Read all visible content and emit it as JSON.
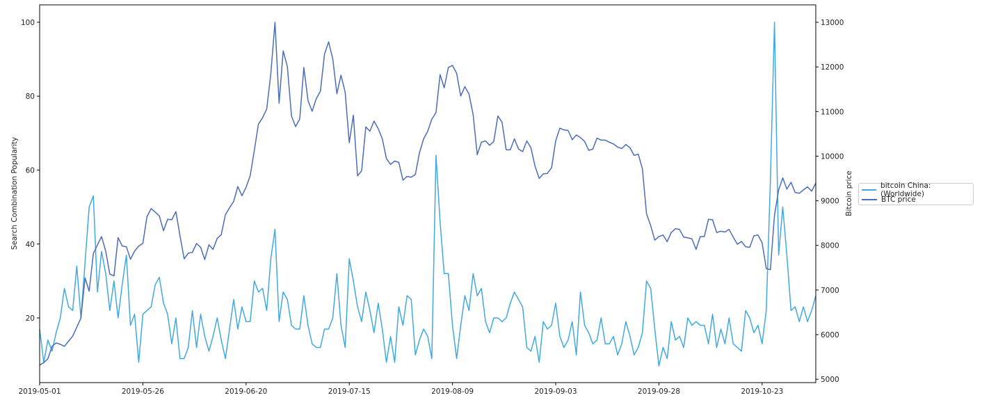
{
  "chart_data": {
    "type": "line",
    "title": "",
    "xlabel": "",
    "ylabel_left": "Search Combination Popularity",
    "ylabel_right": "Bitcoin price",
    "x": {
      "start": "2019-05-01",
      "end": "2019-11-05",
      "frequency": "daily"
    },
    "xlim": [
      "2019-05-01",
      "2019-11-05"
    ],
    "x_ticks": [
      "2019-05-01",
      "2019-05-26",
      "2019-06-20",
      "2019-07-15",
      "2019-08-09",
      "2019-09-03",
      "2019-09-28",
      "2019-10-23"
    ],
    "ylim_left": [
      2.5,
      104.7
    ],
    "y_ticks_left": [
      20,
      40,
      60,
      80,
      100
    ],
    "ylim_right": [
      4925,
      13390
    ],
    "y_ticks_right": [
      5000,
      6000,
      7000,
      8000,
      9000,
      10000,
      11000,
      12000,
      13000
    ],
    "grid": false,
    "legend_placement": "outside-right",
    "series": [
      {
        "name": "bitcoin China: (Worldwide)",
        "axis": "left",
        "color": "#3fa9e3",
        "values": [
          17,
          8,
          14,
          11,
          16,
          20,
          28,
          23,
          22,
          34,
          20,
          35,
          50,
          53,
          27,
          38,
          32,
          22,
          30,
          20,
          29,
          37,
          18,
          21,
          8,
          21,
          22,
          23,
          29,
          31,
          24,
          21,
          13,
          20,
          9,
          9,
          12,
          22,
          12,
          21,
          15,
          11,
          15,
          20,
          14,
          9,
          17,
          25,
          17,
          23,
          19,
          19,
          30,
          27,
          28,
          22,
          36,
          44,
          19,
          27,
          25,
          18,
          17,
          17,
          26,
          18,
          13,
          12,
          12,
          17,
          17,
          20,
          32,
          18,
          12,
          36,
          30,
          23,
          19,
          27,
          22,
          16,
          24,
          17,
          8,
          15,
          8,
          23,
          18,
          26,
          25,
          10,
          14,
          17,
          15,
          9,
          64,
          46,
          32,
          32,
          18,
          9,
          18,
          26,
          22,
          32,
          26,
          28,
          19,
          16,
          20,
          20,
          19,
          20,
          24,
          27,
          25,
          23,
          12,
          11,
          15,
          8,
          19,
          17,
          18,
          24,
          15,
          12,
          14,
          19,
          10,
          27,
          18,
          16,
          13,
          14,
          20,
          13,
          13,
          15,
          10,
          13,
          19,
          15,
          10,
          12,
          16,
          30,
          28,
          17,
          7,
          12,
          9,
          19,
          14,
          15,
          12,
          20,
          18,
          19,
          18,
          18,
          13,
          21,
          12,
          17,
          13,
          20,
          13,
          12,
          11,
          22,
          20,
          16,
          18,
          13,
          22,
          57,
          100,
          37,
          50,
          37,
          22,
          23,
          19,
          23,
          19,
          22,
          26
        ]
      },
      {
        "name": "BTC price",
        "axis": "right",
        "color": "#4a6cba",
        "values": [
          5316,
          5373,
          5459,
          5739,
          5813,
          5784,
          5739,
          5853,
          5967,
          6168,
          6373,
          7271,
          6974,
          7814,
          8014,
          8197,
          7871,
          7357,
          7317,
          8174,
          7986,
          7969,
          7689,
          7871,
          7986,
          8043,
          8643,
          8826,
          8746,
          8660,
          8329,
          8586,
          8574,
          8757,
          8214,
          7700,
          7826,
          7843,
          8043,
          7957,
          7683,
          8014,
          7911,
          8157,
          8243,
          8689,
          8843,
          8986,
          9318,
          9112,
          9301,
          9558,
          10130,
          10719,
          10862,
          11056,
          11845,
          13000,
          11188,
          12360,
          12005,
          10902,
          10662,
          10833,
          11988,
          11245,
          11005,
          11285,
          11456,
          12285,
          12560,
          12177,
          11399,
          11816,
          11433,
          10301,
          10919,
          9558,
          9672,
          10656,
          10559,
          10787,
          10616,
          10387,
          9947,
          9815,
          9890,
          9861,
          9461,
          9546,
          9529,
          9587,
          10073,
          10387,
          10559,
          10827,
          10976,
          11828,
          11531,
          11988,
          12034,
          11856,
          11348,
          11559,
          11388,
          10930,
          10033,
          10313,
          10341,
          10244,
          10330,
          10902,
          10759,
          10141,
          10141,
          10387,
          10158,
          10101,
          10341,
          10187,
          9775,
          9501,
          9604,
          9615,
          9741,
          10341,
          10627,
          10587,
          10576,
          10370,
          10473,
          10416,
          10330,
          10130,
          10158,
          10404,
          10359,
          10359,
          10313,
          10273,
          10204,
          10170,
          10261,
          10187,
          10016,
          10044,
          9718,
          8712,
          8443,
          8117,
          8197,
          8232,
          8083,
          8289,
          8374,
          8357,
          8186,
          8169,
          8146,
          7911,
          8197,
          8197,
          8586,
          8574,
          8289,
          8317,
          8300,
          8357,
          8186,
          8026,
          8089,
          7969,
          7957,
          8214,
          8232,
          8060,
          7483,
          7454,
          8672,
          9244,
          9512,
          9261,
          9415,
          9186,
          9169,
          9244,
          9312,
          9215,
          9398
        ]
      }
    ]
  }
}
